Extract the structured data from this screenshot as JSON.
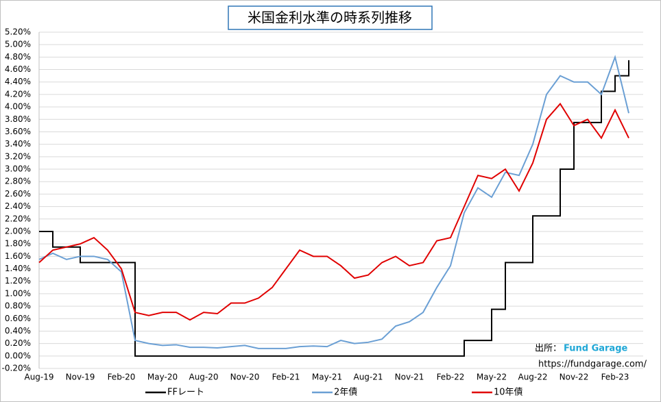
{
  "chart_data": {
    "type": "line",
    "title": "米国金利水準の時系列推移",
    "annotations": [
      "出所：",
      "Fund Garage",
      "https://fundgarage.com/"
    ],
    "categories": [
      "Aug-19",
      null,
      null,
      "Nov-19",
      null,
      null,
      "Feb-20",
      null,
      null,
      "May-20",
      null,
      null,
      "Aug-20",
      null,
      null,
      "Nov-20",
      null,
      null,
      "Feb-21",
      null,
      null,
      "May-21",
      null,
      null,
      "Aug-21",
      null,
      null,
      "Nov-21",
      null,
      null,
      "Feb-22",
      null,
      null,
      "May-22",
      null,
      null,
      "Aug-22",
      null,
      null,
      "Nov-22",
      null,
      null,
      "Feb-23",
      null
    ],
    "series": [
      {
        "name": "FFレート",
        "color": "#000000",
        "drawstyle": "steps",
        "values": [
          2.0,
          1.75,
          1.75,
          1.5,
          1.5,
          1.5,
          1.5,
          0.0,
          0.0,
          0.0,
          0.0,
          0.0,
          0.0,
          0.0,
          0.0,
          0.0,
          0.0,
          0.0,
          0.0,
          0.0,
          0.0,
          0.0,
          0.0,
          0.0,
          0.0,
          0.0,
          0.0,
          0.0,
          0.0,
          0.0,
          0.0,
          0.25,
          0.25,
          0.75,
          1.5,
          1.5,
          2.25,
          2.25,
          3.0,
          3.75,
          3.75,
          4.25,
          4.5,
          4.75
        ]
      },
      {
        "name": "2年債",
        "color": "#6a9fd4",
        "values": [
          1.55,
          1.65,
          1.55,
          1.6,
          1.6,
          1.55,
          1.35,
          0.25,
          0.2,
          0.17,
          0.18,
          0.14,
          0.14,
          0.13,
          0.15,
          0.17,
          0.12,
          0.12,
          0.12,
          0.15,
          0.16,
          0.15,
          0.25,
          0.2,
          0.22,
          0.27,
          0.48,
          0.55,
          0.7,
          1.1,
          1.45,
          2.3,
          2.7,
          2.55,
          2.95,
          2.9,
          3.4,
          4.2,
          4.5,
          4.4,
          4.4,
          4.2,
          4.8,
          3.9
        ]
      },
      {
        "name": "10年債",
        "color": "#e00000",
        "values": [
          1.5,
          1.7,
          1.75,
          1.8,
          1.9,
          1.7,
          1.4,
          0.7,
          0.65,
          0.7,
          0.7,
          0.58,
          0.7,
          0.68,
          0.85,
          0.85,
          0.93,
          1.1,
          1.4,
          1.7,
          1.6,
          1.6,
          1.45,
          1.25,
          1.3,
          1.5,
          1.6,
          1.45,
          1.5,
          1.85,
          1.9,
          2.4,
          2.9,
          2.85,
          3.0,
          2.65,
          3.1,
          3.8,
          4.05,
          3.7,
          3.8,
          3.5,
          3.95,
          3.5
        ]
      }
    ],
    "ylim": [
      -0.2,
      5.2
    ],
    "yticks": [
      {
        "value": -0.2,
        "label": "-0.20%"
      },
      {
        "value": 0,
        "label": "0.00%"
      },
      {
        "value": 0.2,
        "label": "0.20%"
      },
      {
        "value": 0.4,
        "label": "0.40%"
      },
      {
        "value": 0.6,
        "label": "0.60%"
      },
      {
        "value": 0.8,
        "label": "0.80%"
      },
      {
        "value": 1.0,
        "label": "1.00%"
      },
      {
        "value": 1.2,
        "label": "1.20%"
      },
      {
        "value": 1.4,
        "label": "1.40%"
      },
      {
        "value": 1.6,
        "label": "1.60%"
      },
      {
        "value": 1.8,
        "label": "1.80%"
      },
      {
        "value": 2.0,
        "label": "2.00%"
      },
      {
        "value": 2.2,
        "label": "2.20%"
      },
      {
        "value": 2.4,
        "label": "2.40%"
      },
      {
        "value": 2.6,
        "label": "2.60%"
      },
      {
        "value": 2.8,
        "label": "2.80%"
      },
      {
        "value": 3.0,
        "label": "3.00%"
      },
      {
        "value": 3.2,
        "label": "3.20%"
      },
      {
        "value": 3.4,
        "label": "3.40%"
      },
      {
        "value": 3.6,
        "label": "3.60%"
      },
      {
        "value": 3.8,
        "label": "3.80%"
      },
      {
        "value": 4.0,
        "label": "4.00%"
      },
      {
        "value": 4.2,
        "label": "4.20%"
      },
      {
        "value": 4.4,
        "label": "4.40%"
      },
      {
        "value": 4.6,
        "label": "4.60%"
      },
      {
        "value": 4.8,
        "label": "4.80%"
      },
      {
        "value": 5.0,
        "label": "5.00%"
      },
      {
        "value": 5.2,
        "label": "5.20%"
      }
    ],
    "grid": true,
    "legend": "bottom"
  }
}
